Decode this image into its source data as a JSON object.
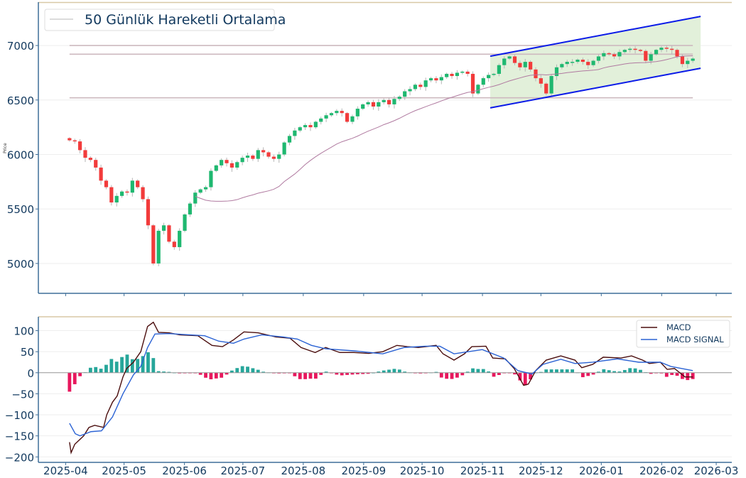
{
  "chart_data": [
    {
      "type": "candlestick",
      "title": "",
      "ylabel": "Price",
      "xlabel": "",
      "ylim": [
        4726,
        7398
      ],
      "xlim": [
        "2025-03-18",
        "2026-03-09"
      ],
      "yticks": [
        5000,
        5500,
        6000,
        6500,
        7000
      ],
      "xticks": [
        "2025-04",
        "2025-05",
        "2025-06",
        "2025-07",
        "2025-08",
        "2025-09",
        "2025-10",
        "2025-11",
        "2025-12",
        "2026-01",
        "2026-02",
        "2026-03"
      ],
      "grid": true,
      "legend": {
        "position": "top-left",
        "entries": [
          "50 Günlük Hareketli Ortalama"
        ]
      },
      "first_date": "2025-04-03",
      "last_date": "2026-02-17",
      "first_open": 6150,
      "closes": [
        6130,
        6120,
        6040,
        5970,
        5950,
        5880,
        5760,
        5700,
        5560,
        5620,
        5660,
        5650,
        5760,
        5700,
        5590,
        5350,
        5000,
        5300,
        5350,
        5200,
        5150,
        5300,
        5450,
        5550,
        5650,
        5680,
        5700,
        5850,
        5900,
        5950,
        5920,
        5880,
        5930,
        5970,
        5990,
        5960,
        6040,
        6020,
        5980,
        5960,
        6000,
        6110,
        6170,
        6220,
        6250,
        6270,
        6250,
        6300,
        6330,
        6360,
        6380,
        6400,
        6380,
        6300,
        6350,
        6420,
        6460,
        6480,
        6440,
        6480,
        6500,
        6460,
        6510,
        6530,
        6580,
        6600,
        6640,
        6620,
        6680,
        6700,
        6680,
        6710,
        6740,
        6720,
        6750,
        6760,
        6740,
        6560,
        6640,
        6700,
        6730,
        6740,
        6820,
        6880,
        6900,
        6840,
        6800,
        6850,
        6780,
        6700,
        6650,
        6560,
        6720,
        6800,
        6830,
        6850,
        6850,
        6870,
        6850,
        6820,
        6860,
        6900,
        6930,
        6920,
        6900,
        6940,
        6960,
        6970,
        6960,
        6950,
        6860,
        6920,
        6960,
        6980,
        6970,
        6960,
        6900,
        6830,
        6860,
        6880
      ],
      "moving_average_window": 25,
      "horizontal_levels": [
        7000,
        6920,
        6520
      ],
      "channel": {
        "start_date": "2025-11-05",
        "end_date": "2026-02-21",
        "upper": [
          6902,
          7267
        ],
        "lower": [
          6428,
          6791
        ]
      },
      "colors": {
        "up": "#1fb870",
        "down": "#f23b3b",
        "wick": "#b5b5b5",
        "ma": "#b07aa0",
        "level": "#cdb9bf",
        "channel_line": "#0a1ae8",
        "channel_fill": "#e2f0da"
      }
    },
    {
      "type": "line",
      "title": "",
      "ylim": [
        -213,
        133
      ],
      "yticks": [
        -200,
        -150,
        -100,
        -50,
        0,
        50,
        100
      ],
      "legend": {
        "position": "top-right",
        "entries": [
          "MACD",
          "MACD SIGNAL"
        ]
      },
      "x_unit": "candle index",
      "series": [
        {
          "name": "MACD",
          "color": "#4a0d0d",
          "points": [
            [
              0,
              -165
            ],
            [
              0.3,
              -190
            ],
            [
              1,
              -170
            ],
            [
              2.7,
              -150
            ],
            [
              3.7,
              -130
            ],
            [
              4.8,
              -125
            ],
            [
              6.5,
              -130
            ],
            [
              7.1,
              -100
            ],
            [
              8.2,
              -70
            ],
            [
              9.1,
              -55
            ],
            [
              10.2,
              -10
            ],
            [
              10.9,
              10
            ],
            [
              12.2,
              25
            ],
            [
              13.6,
              50
            ],
            [
              14.9,
              110
            ],
            [
              16,
              120
            ],
            [
              17,
              96
            ],
            [
              19,
              95
            ],
            [
              21,
              90
            ],
            [
              24.5,
              88
            ],
            [
              27.2,
              65
            ],
            [
              29.2,
              62
            ],
            [
              31.3,
              78
            ],
            [
              33.3,
              97
            ],
            [
              36,
              95
            ],
            [
              39.4,
              85
            ],
            [
              42.1,
              82
            ],
            [
              44.2,
              60
            ],
            [
              46.9,
              48
            ],
            [
              48.9,
              60
            ],
            [
              51.6,
              48
            ],
            [
              54.3,
              48
            ],
            [
              57.1,
              46
            ],
            [
              59.8,
              50
            ],
            [
              62.5,
              65
            ],
            [
              64.5,
              62
            ],
            [
              66.6,
              60
            ],
            [
              70,
              65
            ],
            [
              71.3,
              45
            ],
            [
              73.4,
              30
            ],
            [
              75.4,
              45
            ],
            [
              76.8,
              62
            ],
            [
              79.5,
              63
            ],
            [
              80.8,
              35
            ],
            [
              83.2,
              33
            ],
            [
              84.9,
              10
            ],
            [
              86.7,
              -30
            ],
            [
              87.6,
              -27
            ],
            [
              89,
              5
            ],
            [
              91,
              30
            ],
            [
              93.8,
              40
            ],
            [
              96.5,
              30
            ],
            [
              97.8,
              12
            ],
            [
              99.9,
              20
            ],
            [
              101.9,
              37
            ],
            [
              105.3,
              35
            ],
            [
              107.3,
              40
            ],
            [
              109.4,
              30
            ],
            [
              110.7,
              22
            ],
            [
              112.8,
              25
            ],
            [
              114.1,
              8
            ],
            [
              115.5,
              10
            ],
            [
              117.5,
              -10
            ],
            [
              119,
              -10
            ]
          ]
        },
        {
          "name": "MACD SIGNAL",
          "color": "#2a62d4",
          "points": [
            [
              0,
              -120
            ],
            [
              1.1,
              -145
            ],
            [
              2,
              -150
            ],
            [
              4.1,
              -140
            ],
            [
              6.1,
              -138
            ],
            [
              8.2,
              -105
            ],
            [
              10.2,
              -50
            ],
            [
              12.2,
              -5
            ],
            [
              13.6,
              15
            ],
            [
              14.9,
              60
            ],
            [
              16.3,
              92
            ],
            [
              19,
              93
            ],
            [
              25.8,
              88
            ],
            [
              28.5,
              75
            ],
            [
              31.3,
              70
            ],
            [
              33.3,
              80
            ],
            [
              36.7,
              90
            ],
            [
              40.8,
              85
            ],
            [
              43.5,
              80
            ],
            [
              46.2,
              65
            ],
            [
              48.9,
              57
            ],
            [
              54.3,
              52
            ],
            [
              59.8,
              45
            ],
            [
              63.9,
              60
            ],
            [
              67.9,
              63
            ],
            [
              70.7,
              63
            ],
            [
              73.4,
              45
            ],
            [
              76.1,
              50
            ],
            [
              78.8,
              55
            ],
            [
              82.9,
              35
            ],
            [
              85.6,
              5
            ],
            [
              88.3,
              -3
            ],
            [
              90.4,
              20
            ],
            [
              93.8,
              32
            ],
            [
              96.5,
              22
            ],
            [
              99.9,
              25
            ],
            [
              104.6,
              33
            ],
            [
              108.7,
              25
            ],
            [
              112.8,
              25
            ],
            [
              114.8,
              15
            ],
            [
              119,
              5
            ]
          ]
        }
      ],
      "histogram": {
        "name": "MACD - SIGNAL",
        "up_color": "#26a69a",
        "down_color": "#e8175d"
      }
    }
  ]
}
